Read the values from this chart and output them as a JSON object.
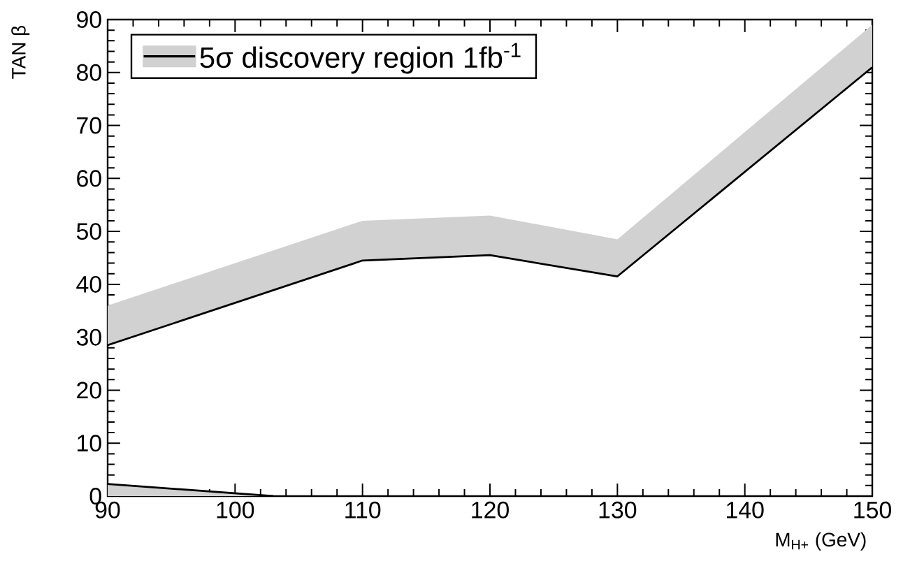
{
  "chart_data": {
    "type": "line",
    "xlabel": "M$_{H+}$ (GeV)",
    "ylabel": "TAN β",
    "xlim": [
      90,
      150
    ],
    "ylim": [
      0,
      90
    ],
    "xticks": [
      90,
      100,
      110,
      120,
      130,
      140,
      150
    ],
    "yticks": [
      0,
      10,
      20,
      30,
      40,
      50,
      60,
      70,
      80,
      90
    ],
    "legend": "top left",
    "series": [
      {
        "name": "5σ discovery region   1fb$^{-1}$",
        "color": "#000000",
        "x": [
          90,
          110,
          120,
          130,
          150
        ],
        "values": [
          28.5,
          44.5,
          45.5,
          41.5,
          81
        ],
        "lower": [
          28.5,
          44.5,
          45.5,
          41.5,
          81
        ],
        "upper": [
          36,
          52,
          53,
          48.5,
          89
        ]
      },
      {
        "type": "area",
        "color": "#000000",
        "x": [
          90,
          103
        ],
        "values": [
          2.3,
          0
        ]
      }
    ]
  }
}
